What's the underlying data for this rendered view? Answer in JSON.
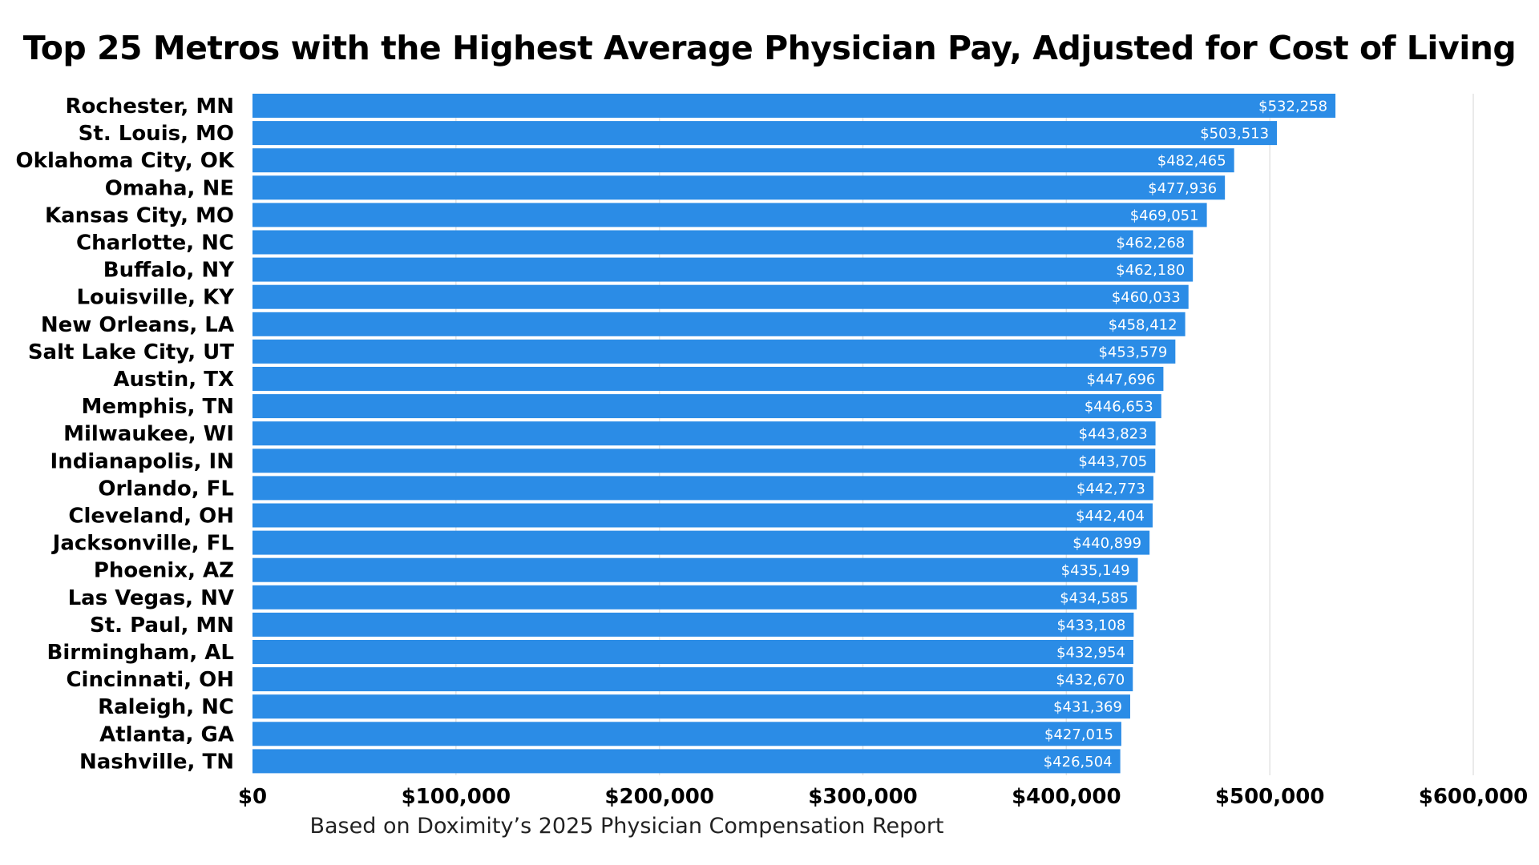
{
  "chart_data": {
    "type": "bar",
    "orientation": "horizontal",
    "title": "Top 25 Metros with the Highest Average Physician Pay, Adjusted for Cost of Living",
    "caption": "Based on Doximity’s 2025 Physician Compensation Report",
    "categories": [
      "Rochester, MN",
      "St. Louis, MO",
      "Oklahoma City, OK",
      "Omaha, NE",
      "Kansas City, MO",
      "Charlotte, NC",
      "Buffalo, NY",
      "Louisville, KY",
      "New Orleans, LA",
      "Salt Lake City, UT",
      "Austin, TX",
      "Memphis, TN",
      "Milwaukee, WI",
      "Indianapolis, IN",
      "Orlando, FL",
      "Cleveland, OH",
      "Jacksonville, FL",
      "Phoenix, AZ",
      "Las Vegas, NV",
      "St. Paul, MN",
      "Birmingham, AL",
      "Cincinnati, OH",
      "Raleigh, NC",
      "Atlanta, GA",
      "Nashville, TN"
    ],
    "values": [
      532258,
      503513,
      482465,
      477936,
      469051,
      462268,
      462180,
      460033,
      458412,
      453579,
      447696,
      446653,
      443823,
      443705,
      442773,
      442404,
      440899,
      435149,
      434585,
      433108,
      432954,
      432670,
      431369,
      427015,
      426504
    ],
    "value_labels": [
      "$532,258",
      "$503,513",
      "$482,465",
      "$477,936",
      "$469,051",
      "$462,268",
      "$462,180",
      "$460,033",
      "$458,412",
      "$453,579",
      "$447,696",
      "$446,653",
      "$443,823",
      "$443,705",
      "$442,773",
      "$442,404",
      "$440,899",
      "$435,149",
      "$434,585",
      "$433,108",
      "$432,954",
      "$432,670",
      "$431,369",
      "$427,015",
      "$426,504"
    ],
    "xlim": [
      0,
      600000
    ],
    "xticks": [
      0,
      100000,
      200000,
      300000,
      400000,
      500000,
      600000
    ],
    "xtick_labels": [
      "$0",
      "$100,000",
      "$200,000",
      "$300,000",
      "$400,000",
      "$500,000",
      "$600,000"
    ],
    "grid": true,
    "bar_color": "#2B8CE6",
    "grid_color": "#E3E3E3"
  }
}
